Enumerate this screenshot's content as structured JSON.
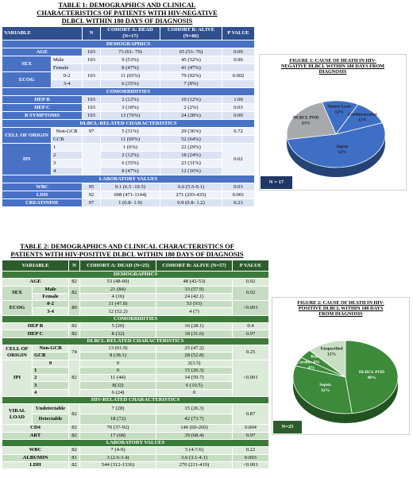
{
  "table1": {
    "title": [
      "TABLE 1: DEMOGRAPHICS AND CLINICAL",
      "CHARACTERISTICS OF PATIENTS WITH HIV-NEGATIVE",
      "DLBCL WITHIN 180 DAYS OF DIAGNOSIS"
    ],
    "headers": [
      "VARIABLE",
      "N",
      "COHORT A: DEAD (N=17)",
      "COHORT B: ALIVE (N=86)",
      "P VALUE"
    ],
    "sections": {
      "demo": "DEMOGRAPHICS",
      "comorb": "COMORBIDITIES",
      "dlbcl": "DLBCL-RELATED CHARACTERISTICS",
      "lab": "LABORATORY VALUES"
    },
    "rows": {
      "age": [
        "AGE",
        "103",
        "73 (61- 79)",
        "65 (53- 76)",
        "0.09"
      ],
      "sex": [
        "SEX",
        "Male",
        "103",
        "9 (53%)",
        "45 (52%)",
        "0.96"
      ],
      "female": [
        "Female",
        "8 (47%)",
        "41 (47%)"
      ],
      "ecog": [
        "ECOG",
        "0-2",
        "103",
        "11 (65%)",
        "79 (92%)",
        "0.002"
      ],
      "ecog34": [
        "3-4",
        "6 (35%)",
        "7 (8%)"
      ],
      "hepb": [
        "HEP B",
        "103",
        "2 (12%)",
        "10 (12%)",
        "1.00"
      ],
      "hepc": [
        "HEP C",
        "103",
        "3 (18%)",
        "2 (2%)",
        "0.03"
      ],
      "bsym": [
        "B SYMPTOMS",
        "103",
        "13 (76%)",
        "24 (28%)",
        "0.00"
      ],
      "coo": [
        "CELL OF ORIGIN",
        "Non-GCB",
        "97",
        "5 (31%)",
        "29 (36%)",
        "0.72"
      ],
      "gcb": [
        "GCB",
        "11 (69%)",
        "52 (64%)"
      ],
      "ipi1": [
        "IPI",
        "1",
        "1 (6%)",
        "22 (29%)",
        "0.02"
      ],
      "ipi2": [
        "2",
        "2 (12%)",
        "18 (24%)"
      ],
      "ipi3": [
        "3",
        "6 (35%)",
        "23 (31%)"
      ],
      "ipi4": [
        "4",
        "8 (47%)",
        "12 (16%)"
      ],
      "wbc": [
        "WBC",
        "95",
        "9.1 (6.5 -10.5)",
        "6.6 (5.5-9.1)",
        "0.03"
      ],
      "ldh": [
        "LDH",
        "92",
        "608 (471-1144)",
        "271 (203-435)",
        "0.001"
      ],
      "creat": [
        "CREATININE",
        "97",
        "1 (0.8- 1.9)",
        "0.9 (0.8- 1.2)",
        "0.23"
      ]
    }
  },
  "figure1": {
    "title": [
      "FIGURE 1: CAUSE OF DEATH IN HIV-",
      "NEGATIVE DLBCL WITHIN 180 DAYS FROM",
      "DIAGNOSIS"
    ],
    "n_label": "N = 17"
  },
  "table2": {
    "title": [
      "TABLE 2: DEMOGRAPHICS AND CLINICAL CHARACTERISTICS OF",
      "PATIENTS WITH HIV-POSITIVE DLBCL WITHIN 180 DAYS OF DIAGNOSIS"
    ],
    "headers": [
      "VARIABLE",
      "N",
      "COHORT A: DEAD (N=25)",
      "COHORT B: ALIVE (N=57)",
      "P VALUE"
    ],
    "sections": {
      "demo": "DEMOGRAPHICS",
      "comorb": "COMORBIDITIES",
      "dlbcl": "DLBCL-RELATED CHARACTERISTICS",
      "hiv": "HIV-RELATED CHARACTERISTICS",
      "lab": "LABORATORY VALUES"
    },
    "rows": {
      "age": [
        "AGE",
        "82",
        "53 (48-60)",
        "48 (42-53)",
        "0.02"
      ],
      "sex": [
        "SEX",
        "Male",
        "82",
        "21 (84)",
        "33 (57.9)",
        "0.02"
      ],
      "female": [
        "Female",
        "4 (16)",
        "24 (42.1)"
      ],
      "ecog": [
        "ECOG",
        "0-2",
        "80",
        "11 (47.8)",
        "53 (93)",
        "<0.001"
      ],
      "ecog34": [
        "3-4",
        "12 (52.2)",
        "4 (7)"
      ],
      "hepb": [
        "HEP B",
        "82",
        "5 (20)",
        "16 (28.1)",
        "0.4"
      ],
      "hepc": [
        "HEP C",
        "82",
        "8 (32)",
        "18 (31.6)",
        "0.97"
      ],
      "coo": [
        "CELL OF ORIGIN",
        "Non-GCB",
        "74",
        "13 (61.9)",
        "25 (47.2)",
        "0.25"
      ],
      "gcb": [
        "GCB",
        "8 (38.1)",
        "28 (52.8)"
      ],
      "ipi0": [
        "IPI",
        "0",
        "82",
        "0",
        "2(3.5)",
        "<0.001"
      ],
      "ipi1": [
        "1",
        "0",
        "15 (26.3)"
      ],
      "ipi2": [
        "2",
        "11 (44)",
        "34 (59.7)"
      ],
      "ipi3": [
        "3",
        "8(32)",
        "6 (10.5)"
      ],
      "ipi4": [
        "4",
        "6 (24)",
        "0"
      ],
      "vl": [
        "VIRAL LOAD",
        "Undetectable",
        "82",
        "7 (28)",
        "15 (26.3)",
        "0.87"
      ],
      "vl2": [
        "Detectable",
        "18 (72)",
        "42 (73.7)"
      ],
      "cd4": [
        "CD4",
        "82",
        "70 (37-92)",
        "140 (60-260)",
        "0.004"
      ],
      "art": [
        "ART",
        "82",
        "17 (68)",
        "39 (68.4)",
        "0.97"
      ],
      "wbc": [
        "WBC",
        "82",
        "7 (4-9)",
        "5 (4-7.6)",
        "0.22"
      ],
      "alb": [
        "ALBUMIN",
        "81",
        "3 (2.6-3.4)",
        "3.6 (3.1-4.1)",
        "0.003"
      ],
      "ldh": [
        "LDH",
        "82",
        "544 (312-1336)",
        "270 (211-419)",
        "<0.001"
      ]
    }
  },
  "figure2": {
    "title": [
      "FIGURE 2: CAUSE OF DEATH IN HIV-",
      "POSITIVE DLBCL WITHIN 180 DAYS",
      "FROM DIAGNOSIS"
    ],
    "n_label": "N=25"
  },
  "chart_data": [
    {
      "type": "pie",
      "title": "FIGURE 1: CAUSE OF DEATH IN HIV-NEGATIVE DLBCL WITHIN 180 DAYS FROM DIAGNOSIS",
      "categories": [
        "Sepsis",
        "DLBCL POD",
        "Tumor Lysis",
        "Cardiovascular"
      ],
      "values": [
        53,
        23,
        12,
        12
      ],
      "labels": [
        "Sepsis\n53%",
        "DLBCL POD\n23%",
        "Tumor Lysis\n12%",
        "Cardiovascular\n12%"
      ],
      "colors": [
        "#3f6fc4",
        "#a7a9ad",
        "#3f6fc4",
        "#3f6fc4"
      ]
    },
    {
      "type": "pie",
      "title": "FIGURE 2: CAUSE OF DEATH IN HIV-POSITIVE DLBCL WITHIN 180 DAYS FROM DIAGNOSIS",
      "categories": [
        "DLBCL POD",
        "Sepsis",
        "Cardiovascular",
        "Renal",
        "Unspecified"
      ],
      "values": [
        48,
        32,
        4,
        4,
        12
      ],
      "labels": [
        "DLBCL POD\n48%",
        "Sepsis\n32%",
        "Cardiovascular\n4%",
        "Renal\n4%",
        "Unspecified\n12%"
      ],
      "colors": [
        "#3c8a3a",
        "#3c8a3a",
        "#3c8a3a",
        "#3c8a3a",
        "#c9dfc3"
      ]
    }
  ]
}
